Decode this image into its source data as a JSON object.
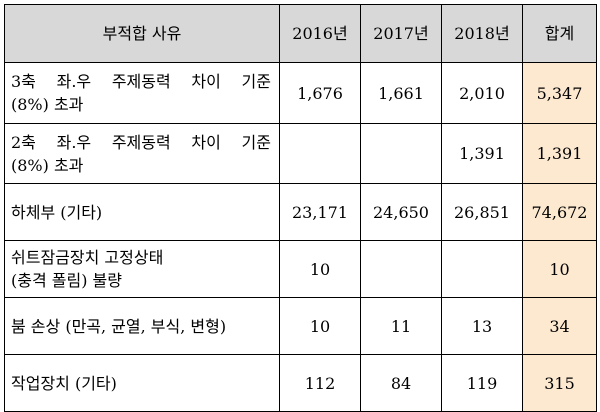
{
  "table": {
    "headers": [
      "부적합 사유",
      "2016년",
      "2017년",
      "2018년",
      "합계"
    ],
    "rows": [
      {
        "label": [
          "3축 좌.우 주제동력 차이 기준",
          "(8%) 초과"
        ],
        "values": [
          "1,676",
          "1,661",
          "2,010"
        ],
        "total": "5,347"
      },
      {
        "label": [
          "2축 좌.우 주제동력 차이 기준",
          "(8%) 초과"
        ],
        "values": [
          "",
          "",
          "1,391"
        ],
        "total": "1,391"
      },
      {
        "label": [
          "하체부 (기타)"
        ],
        "values": [
          "23,171",
          "24,650",
          "26,851"
        ],
        "total": "74,672"
      },
      {
        "label": [
          "쉬트잠금장치 고정상태",
          "(충격 폴림) 불량"
        ],
        "values": [
          "10",
          "",
          ""
        ],
        "total": "10"
      },
      {
        "label": [
          "붐 손상 (만곡, 균열, 부식, 변형)"
        ],
        "values": [
          "10",
          "11",
          "13"
        ],
        "total": "34"
      },
      {
        "label": [
          "작업장치 (기타)"
        ],
        "values": [
          "112",
          "84",
          "119"
        ],
        "total": "315"
      }
    ]
  },
  "colors": {
    "header_bg": "#d8d8d8",
    "total_bg": "#fde9d0",
    "border": "#000000"
  }
}
